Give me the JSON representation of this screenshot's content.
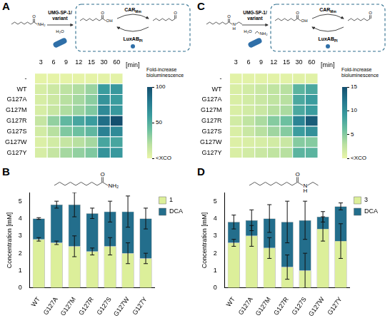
{
  "chart_data": [
    {
      "type": "heatmap",
      "panel": "A",
      "scheme": {
        "substrate_atoms": [
          "O",
          "NH₂"
        ],
        "enzyme": [
          "UMG-SP-1/",
          "variant"
        ],
        "cosubstrate": "H₂O",
        "acid_atoms": [
          "O",
          "OH"
        ],
        "aldehyde_atoms": [
          "O"
        ],
        "reduction": {
          "main": "CAR",
          "sub": "Mm"
        },
        "oxidation": {
          "main": "LuxAB",
          "sub": "Pl"
        }
      },
      "x": [
        "3",
        "6",
        "9",
        "12",
        "15",
        "30",
        "60"
      ],
      "x_label": "[min]",
      "categories": [
        "-",
        "WT",
        "G127A",
        "G127M",
        "G127R",
        "G127S",
        "G127W",
        "G127Y"
      ],
      "cells": [
        [
          2,
          2,
          2,
          2,
          2,
          3,
          3
        ],
        [
          8,
          12,
          18,
          22,
          28,
          60,
          62
        ],
        [
          8,
          12,
          20,
          25,
          32,
          65,
          60
        ],
        [
          8,
          14,
          22,
          28,
          35,
          70,
          62
        ],
        [
          15,
          30,
          45,
          55,
          60,
          85,
          100
        ],
        [
          10,
          20,
          35,
          40,
          45,
          75,
          70
        ],
        [
          6,
          10,
          15,
          20,
          25,
          55,
          55
        ],
        [
          8,
          15,
          25,
          30,
          35,
          65,
          62
        ]
      ],
      "colorbar": {
        "title": "Fold-increase bioluminescence",
        "range": [
          0,
          100
        ],
        "ticks": [
          {
            "value": 0,
            "label": "<XCO"
          },
          50,
          100
        ]
      }
    },
    {
      "type": "bar",
      "panel": "B",
      "stacked": true,
      "grid": false,
      "legend": "right",
      "structure": {
        "atoms": [
          "O",
          "NH₂"
        ]
      },
      "categories": [
        "WT",
        "G127A",
        "G127M",
        "G127R",
        "G127S",
        "G127W",
        "G127Y"
      ],
      "series": [
        {
          "name": "1",
          "color": "#dcef9a",
          "values": [
            2.8,
            2.6,
            2.4,
            2.1,
            2.4,
            2.0,
            1.7
          ],
          "errors": [
            0.1,
            0.1,
            0.6,
            0.2,
            0.5,
            0.6,
            0.3
          ]
        },
        {
          "name": "DCA",
          "color": "#236e8c",
          "values": [
            1.2,
            2.2,
            2.4,
            2.2,
            2.0,
            2.4,
            2.3
          ],
          "errors": [
            0.05,
            0.2,
            0.7,
            0.3,
            0.6,
            0.9,
            0.6
          ]
        }
      ],
      "y_label": "Concentration [mM]",
      "ylim": [
        0,
        5.5
      ],
      "yticks": [
        0,
        1,
        2,
        3,
        4,
        5
      ]
    },
    {
      "type": "heatmap",
      "panel": "C",
      "scheme": {
        "substrate_atoms": [
          "O",
          "N",
          "H"
        ],
        "enzyme": [
          "UMG-SP-1/",
          "variant"
        ],
        "cosubstrate": "H₂O",
        "coproduct": "NH₂",
        "acid_atoms": [
          "O",
          "OH"
        ],
        "aldehyde_atoms": [
          "O"
        ],
        "reduction": {
          "main": "CAR",
          "sub": "Mm"
        },
        "oxidation": {
          "main": "LuxAB",
          "sub": "Pl"
        }
      },
      "x": [
        "3",
        "6",
        "9",
        "12",
        "15",
        "30",
        "60"
      ],
      "x_label": "[min]",
      "categories": [
        "-",
        "WT",
        "G127A",
        "G127M",
        "G127R",
        "G127S",
        "G127W",
        "G127Y"
      ],
      "cells": [
        [
          0.5,
          0.5,
          0.5,
          0.5,
          0.5,
          0.6,
          0.6
        ],
        [
          1,
          1.5,
          2,
          2.5,
          3,
          7,
          8
        ],
        [
          1,
          1.5,
          2,
          2.5,
          3,
          8,
          9
        ],
        [
          1,
          1.5,
          2,
          3,
          3.5,
          8,
          9
        ],
        [
          1.5,
          2.5,
          3.5,
          5,
          6,
          11,
          14
        ],
        [
          1,
          2,
          3,
          4,
          5,
          9,
          10
        ],
        [
          0.8,
          1,
          1.2,
          1.5,
          2,
          5,
          5
        ],
        [
          1,
          1.5,
          2,
          2.5,
          3,
          7,
          7
        ]
      ],
      "colorbar": {
        "title": "Fold-increase bioluminescence",
        "range": [
          0,
          15
        ],
        "ticks": [
          {
            "value": 0,
            "label": "<XCO"
          },
          5,
          10,
          15
        ]
      }
    },
    {
      "type": "bar",
      "panel": "D",
      "stacked": true,
      "grid": false,
      "legend": "right",
      "structure": {
        "atoms": [
          "O",
          "N",
          "H"
        ]
      },
      "categories": [
        "WT",
        "G127A",
        "G127M",
        "G127R",
        "G127S",
        "G127W",
        "G127Y"
      ],
      "series": [
        {
          "name": "3",
          "color": "#dcef9a",
          "values": [
            2.6,
            3.0,
            2.3,
            1.2,
            1.0,
            3.4,
            2.7
          ],
          "errors": [
            0.2,
            0.6,
            0.6,
            0.7,
            1.0,
            0.7,
            1.0
          ]
        },
        {
          "name": "DCA",
          "color": "#236e8c",
          "values": [
            1.2,
            0.9,
            1.7,
            2.6,
            2.9,
            0.7,
            2.0
          ],
          "errors": [
            0.4,
            0.6,
            0.8,
            1.2,
            1.1,
            0.3,
            0.2
          ]
        }
      ],
      "y_label": "Concentration [mM]",
      "ylim": [
        0,
        5.5
      ],
      "yticks": [
        0,
        1,
        2,
        3,
        4,
        5
      ]
    }
  ]
}
